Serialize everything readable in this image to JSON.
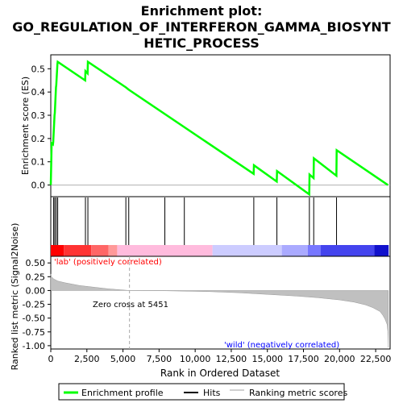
{
  "chart_data": {
    "type": "line",
    "title_lines": [
      "Enrichment plot:",
      "GO_REGULATION_OF_INTERFERON_GAMMA_BIOSYNT",
      "HETIC_PROCESS"
    ],
    "xlabel": "Rank in Ordered Dataset",
    "xlim": [
      0,
      23500
    ],
    "x_ticks": [
      0,
      2500,
      5000,
      7500,
      10000,
      12500,
      15000,
      17500,
      20000,
      22500
    ],
    "x_tick_labels": [
      "0",
      "2,500",
      "5,000",
      "7,500",
      "10,000",
      "12,500",
      "15,000",
      "17,500",
      "20,000",
      "22,500"
    ],
    "es_panel": {
      "ylabel": "Enrichment score (ES)",
      "ylim": [
        -0.05,
        0.56
      ],
      "y_ticks": [
        0.0,
        0.1,
        0.2,
        0.3,
        0.4,
        0.5
      ],
      "y_tick_labels": [
        "0.0",
        "0.1",
        "0.2",
        "0.3",
        "0.4",
        "0.5"
      ],
      "series": [
        {
          "name": "Enrichment profile",
          "color": "#00ff00",
          "x": [
            0,
            60,
            150,
            170,
            260,
            280,
            360,
            380,
            460,
            480,
            2380,
            2400,
            2550,
            2570,
            5200,
            5400,
            14050,
            14070,
            15650,
            15670,
            17900,
            17920,
            18200,
            18220,
            19780,
            19800,
            23350
          ],
          "y": [
            0.0,
            0.18,
            0.175,
            0.185,
            0.3,
            0.31,
            0.42,
            0.43,
            0.52,
            0.53,
            0.45,
            0.49,
            0.48,
            0.53,
            0.42,
            0.41,
            0.048,
            0.085,
            0.015,
            0.06,
            -0.04,
            0.045,
            0.03,
            0.115,
            0.04,
            0.15,
            0.0
          ]
        }
      ]
    },
    "hits_panel": {
      "hit_color": "#000000",
      "hit_positions": [
        200,
        280,
        380,
        480,
        2400,
        2570,
        5200,
        5400,
        7900,
        9250,
        14060,
        15660,
        17910,
        18210,
        19790
      ]
    },
    "rank_bar": {
      "segments": [
        {
          "x0": 0,
          "x1": 900,
          "color": "#ff0000"
        },
        {
          "x0": 900,
          "x1": 2800,
          "color": "#ff3333"
        },
        {
          "x0": 2800,
          "x1": 4000,
          "color": "#ff6666"
        },
        {
          "x0": 4000,
          "x1": 4600,
          "color": "#ff9999"
        },
        {
          "x0": 4600,
          "x1": 11200,
          "color": "#ffbbdd"
        },
        {
          "x0": 11200,
          "x1": 16000,
          "color": "#ccccff"
        },
        {
          "x0": 16000,
          "x1": 17800,
          "color": "#aaaaff"
        },
        {
          "x0": 17800,
          "x1": 18700,
          "color": "#7777ff"
        },
        {
          "x0": 18700,
          "x1": 22400,
          "color": "#4444ee"
        },
        {
          "x0": 22400,
          "x1": 23400,
          "color": "#1111cc"
        }
      ]
    },
    "metric_panel": {
      "ylabel": "Ranked list metric (Signal2Noise)",
      "ylim": [
        -1.06,
        0.62
      ],
      "y_ticks": [
        0.5,
        0.25,
        0.0,
        -0.25,
        -0.5,
        -0.75,
        -1.0
      ],
      "y_tick_labels": [
        "0.50",
        "0.25",
        "0.00",
        "-0.25",
        "-0.50",
        "-0.75",
        "-1.00"
      ],
      "fill_color": "#c0c0c0",
      "x": [
        0,
        50,
        200,
        500,
        1000,
        2000,
        3000,
        4000,
        5000,
        5451,
        8000,
        11000,
        13000,
        15000,
        17000,
        18500,
        20000,
        21000,
        21800,
        22300,
        22800,
        23000,
        23150,
        23300,
        23350,
        23380
      ],
      "y": [
        0.3,
        0.25,
        0.21,
        0.17,
        0.14,
        0.09,
        0.06,
        0.03,
        0.01,
        0.0,
        -0.005,
        -0.02,
        -0.04,
        -0.07,
        -0.1,
        -0.13,
        -0.17,
        -0.21,
        -0.26,
        -0.31,
        -0.38,
        -0.45,
        -0.52,
        -0.62,
        -0.75,
        -1.03
      ],
      "zero_cross": 5451,
      "zero_cross_label": "Zero cross at 5451",
      "pos_label": "'lab' (positively correlated)",
      "neg_label": "'wild' (negatively correlated)",
      "pos_label_color": "#ff0000",
      "neg_label_color": "#0000ff"
    },
    "legend": {
      "entries": [
        {
          "label": "Enrichment profile",
          "color": "#00ff00"
        },
        {
          "label": "Hits",
          "color": "#000000"
        },
        {
          "label": "Ranking metric scores",
          "color": "#c0c0c0"
        }
      ]
    }
  }
}
